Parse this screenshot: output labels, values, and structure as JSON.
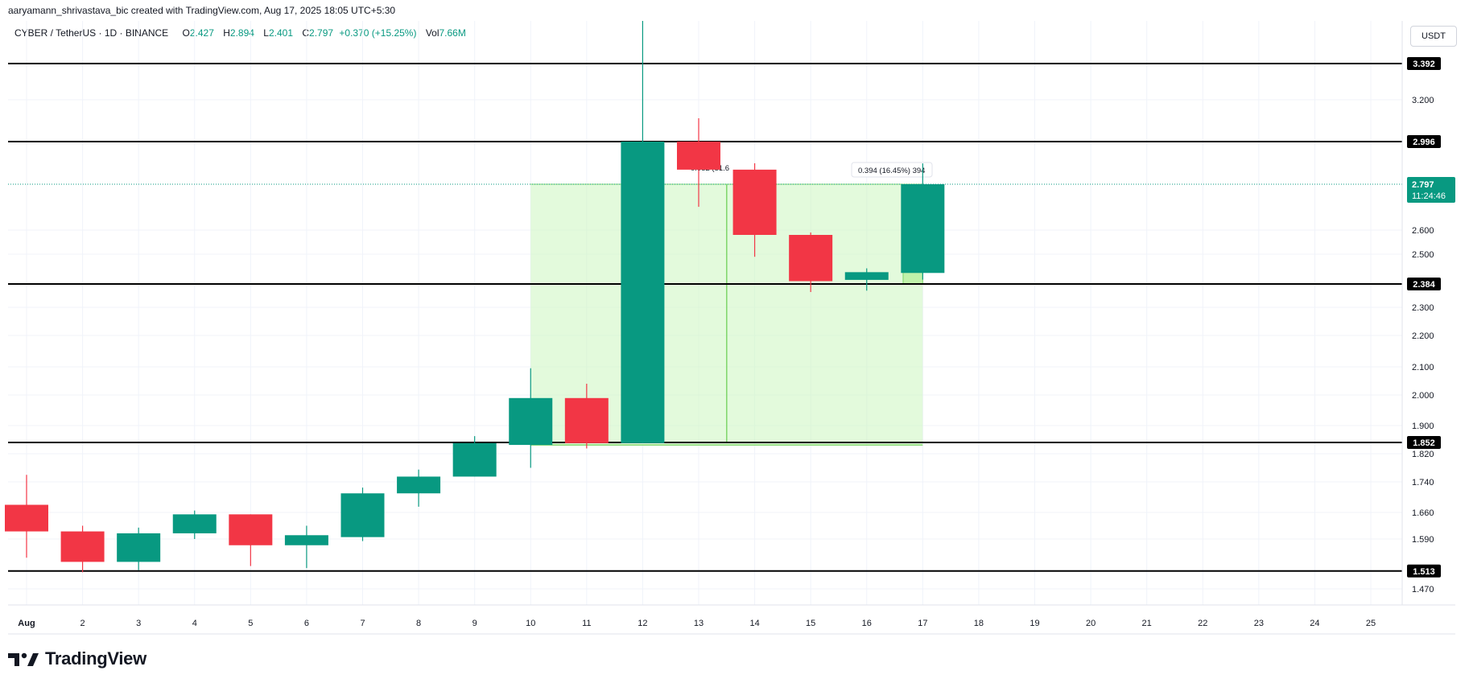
{
  "header": {
    "attribution": "aaryamann_shrivastava_bic created with TradingView.com, Aug 17, 2025 18:05 UTC+5:30",
    "symbol": "CYBER / TetherUS · 1D · BINANCE",
    "open_label": "O",
    "open": "2.427",
    "high_label": "H",
    "high": "2.894",
    "low_label": "L",
    "low": "2.401",
    "close_label": "C",
    "close": "2.797",
    "change": "+0.370 (+15.25%)",
    "vol_label": "Vol",
    "vol": "7.66M"
  },
  "currency": "USDT",
  "brand": {
    "name": "TradingView",
    "logo_icon": "tradingview-logo-icon"
  },
  "colors": {
    "up": "#089981",
    "down": "#f23645",
    "zone": "#ccf5c0",
    "zone_border": "#7ed66a",
    "line": "#000000"
  },
  "chart_data": {
    "type": "candlestick",
    "x_ticks": [
      "Aug",
      "2",
      "3",
      "4",
      "5",
      "6",
      "7",
      "8",
      "9",
      "10",
      "11",
      "12",
      "13",
      "14",
      "15",
      "16",
      "17",
      "18",
      "19",
      "20",
      "21",
      "22",
      "23",
      "24",
      "25"
    ],
    "y_ticks": [
      "3.200",
      "2.600",
      "2.500",
      "2.300",
      "2.200",
      "2.100",
      "2.000",
      "1.900",
      "1.820",
      "1.740",
      "1.660",
      "1.590",
      "1.470"
    ],
    "candles": [
      {
        "day": 1,
        "o": 1.68,
        "h": 1.76,
        "l": 1.545,
        "c": 1.61
      },
      {
        "day": 2,
        "o": 1.61,
        "h": 1.625,
        "l": 1.51,
        "c": 1.535
      },
      {
        "day": 3,
        "o": 1.535,
        "h": 1.62,
        "l": 1.515,
        "c": 1.605
      },
      {
        "day": 4,
        "o": 1.605,
        "h": 1.665,
        "l": 1.59,
        "c": 1.655
      },
      {
        "day": 5,
        "o": 1.655,
        "h": 1.655,
        "l": 1.525,
        "c": 1.575
      },
      {
        "day": 6,
        "o": 1.575,
        "h": 1.625,
        "l": 1.52,
        "c": 1.6
      },
      {
        "day": 7,
        "o": 1.595,
        "h": 1.725,
        "l": 1.585,
        "c": 1.71
      },
      {
        "day": 8,
        "o": 1.71,
        "h": 1.775,
        "l": 1.675,
        "c": 1.755
      },
      {
        "day": 9,
        "o": 1.755,
        "h": 1.87,
        "l": 1.755,
        "c": 1.85
      },
      {
        "day": 10,
        "o": 1.845,
        "h": 2.095,
        "l": 1.78,
        "c": 1.99
      },
      {
        "day": 11,
        "o": 1.99,
        "h": 2.04,
        "l": 1.835,
        "c": 1.85
      },
      {
        "day": 12,
        "o": 1.85,
        "h": 3.76,
        "l": 1.85,
        "c": 2.996
      },
      {
        "day": 13,
        "o": 2.996,
        "h": 3.11,
        "l": 2.7,
        "c": 2.865
      },
      {
        "day": 14,
        "o": 2.865,
        "h": 2.895,
        "l": 2.49,
        "c": 2.58
      },
      {
        "day": 15,
        "o": 2.58,
        "h": 2.59,
        "l": 2.355,
        "c": 2.395
      },
      {
        "day": 16,
        "o": 2.4,
        "h": 2.445,
        "l": 2.36,
        "c": 2.43
      },
      {
        "day": 17,
        "o": 2.427,
        "h": 2.894,
        "l": 2.401,
        "c": 2.797
      }
    ],
    "levels": [
      "3.392",
      "2.996",
      "2.384",
      "1.852",
      "1.513"
    ],
    "current_price": "2.797",
    "countdown": "11:24:46",
    "measure_labels": [
      "0.952 (51.6",
      "0.394 (16.45%) 394"
    ],
    "zone": {
      "x_start": 10,
      "x_end": 17,
      "top": 2.797,
      "bottom": 1.845
    }
  }
}
